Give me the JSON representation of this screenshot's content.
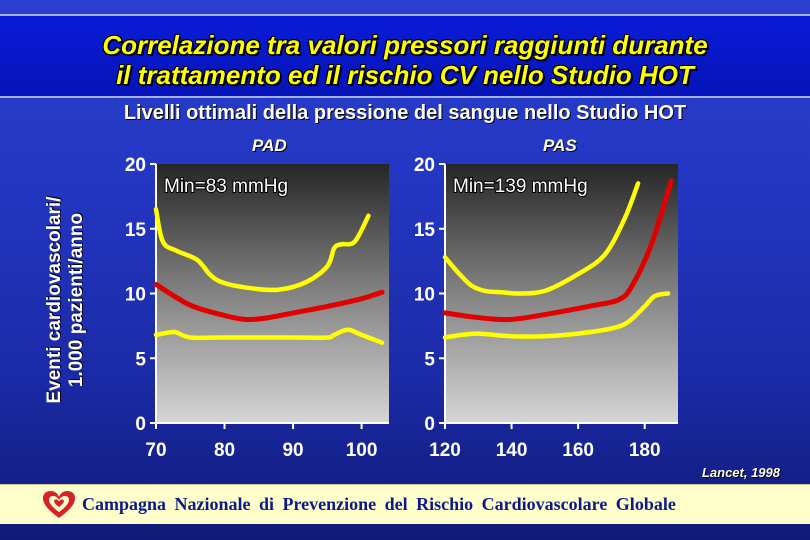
{
  "title": {
    "line1": "Correlazione tra valori pressori raggiunti durante",
    "line2": "il trattamento ed il rischio CV nello Studio HOT"
  },
  "subtitle": "Livelli ottimali della pressione del sangue nello Studio HOT",
  "ylabel": {
    "line1": "Eventi cardiovascolari/",
    "line2": "1.000 pazienti/anno"
  },
  "citation": "Lancet, 1998",
  "footer": {
    "logo_icon": "heart-shield-logo-icon",
    "text": "Campagna Nazionale di Prevenzione del Rischio Cardiovascolare Globale"
  },
  "colors": {
    "bound_line": "#ffff00",
    "center_line": "#e00000",
    "text": "#ffffff",
    "title": "#ffff00"
  },
  "chart_data": [
    {
      "type": "line",
      "title": "PAD",
      "annotation": "Min=83 mmHg",
      "xlim": [
        70,
        104
      ],
      "ylim": [
        0,
        20
      ],
      "xticks": [
        70,
        80,
        90,
        100
      ],
      "yticks": [
        0,
        5,
        10,
        15,
        20
      ],
      "series": [
        {
          "role": "upper",
          "x": [
            70,
            71,
            73,
            76,
            78,
            80,
            84,
            88,
            92,
            95,
            96,
            97,
            99,
            101
          ],
          "y": [
            16.5,
            14.0,
            13.3,
            12.6,
            11.4,
            10.8,
            10.4,
            10.3,
            10.9,
            12.1,
            13.5,
            13.8,
            14.0,
            16.0
          ]
        },
        {
          "role": "center",
          "x": [
            70,
            75,
            80,
            83,
            86,
            90,
            95,
            100,
            103
          ],
          "y": [
            10.7,
            9.1,
            8.3,
            8.0,
            8.1,
            8.5,
            9.0,
            9.6,
            10.1
          ]
        },
        {
          "role": "lower",
          "x": [
            70,
            72,
            73,
            75,
            80,
            90,
            95,
            96,
            98,
            100,
            103
          ],
          "y": [
            6.8,
            7.0,
            7.0,
            6.6,
            6.6,
            6.6,
            6.6,
            6.8,
            7.2,
            6.8,
            6.2
          ]
        }
      ]
    },
    {
      "type": "line",
      "title": "PAS",
      "annotation": "Min=139 mmHg",
      "xlim": [
        120,
        190
      ],
      "ylim": [
        0,
        20
      ],
      "xticks": [
        120,
        140,
        160,
        180
      ],
      "yticks": [
        0,
        5,
        10,
        15,
        20
      ],
      "series": [
        {
          "role": "upper",
          "x": [
            120,
            124,
            128,
            132,
            137,
            142,
            150,
            160,
            168,
            174,
            178
          ],
          "y": [
            12.8,
            11.6,
            10.6,
            10.2,
            10.1,
            10.0,
            10.2,
            11.5,
            13.0,
            15.8,
            18.5
          ]
        },
        {
          "role": "center",
          "x": [
            120,
            128,
            136,
            140,
            146,
            155,
            165,
            172,
            176,
            182,
            188
          ],
          "y": [
            8.5,
            8.2,
            8.0,
            8.0,
            8.2,
            8.6,
            9.1,
            9.5,
            10.5,
            13.8,
            18.7
          ]
        },
        {
          "role": "lower",
          "x": [
            120,
            125,
            130,
            140,
            150,
            160,
            170,
            175,
            180,
            183,
            187
          ],
          "y": [
            6.6,
            6.8,
            6.9,
            6.7,
            6.7,
            6.9,
            7.3,
            7.8,
            9.0,
            9.8,
            10.0
          ]
        }
      ]
    }
  ]
}
